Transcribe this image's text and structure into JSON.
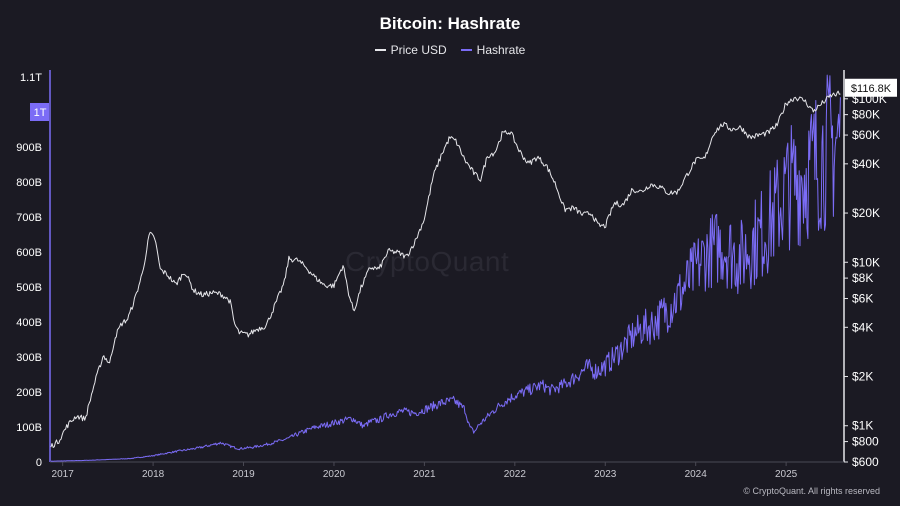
{
  "chart_data": {
    "type": "line",
    "title": "Bitcoin: Hashrate",
    "xlabel": "",
    "ylabel_left": "",
    "ylabel_right": "",
    "x_ticks": [
      "2017",
      "2018",
      "2019",
      "2020",
      "2021",
      "2022",
      "2023",
      "2024",
      "2025"
    ],
    "x_range": [
      2016.86,
      2025.64
    ],
    "y_left": {
      "scale": "linear",
      "range": [
        0,
        1120000000000.0
      ],
      "ticks": [
        {
          "value": 0,
          "label": "0"
        },
        {
          "value": 100000000000.0,
          "label": "100B"
        },
        {
          "value": 200000000000.0,
          "label": "200B"
        },
        {
          "value": 300000000000.0,
          "label": "300B"
        },
        {
          "value": 400000000000.0,
          "label": "400B"
        },
        {
          "value": 500000000000.0,
          "label": "500B"
        },
        {
          "value": 600000000000.0,
          "label": "600B"
        },
        {
          "value": 700000000000.0,
          "label": "700B"
        },
        {
          "value": 800000000000.0,
          "label": "800B"
        },
        {
          "value": 900000000000.0,
          "label": "900B"
        },
        {
          "value": 1100000000000.0,
          "label": "1.1T"
        }
      ],
      "highlight": {
        "value": 1000000000000.0,
        "label": "1T"
      }
    },
    "y_right": {
      "scale": "log",
      "range": [
        600,
        150000
      ],
      "ticks": [
        {
          "value": 600,
          "label": "$600"
        },
        {
          "value": 800,
          "label": "$800"
        },
        {
          "value": 1000,
          "label": "$1K"
        },
        {
          "value": 2000,
          "label": "$2K"
        },
        {
          "value": 4000,
          "label": "$4K"
        },
        {
          "value": 6000,
          "label": "$6K"
        },
        {
          "value": 8000,
          "label": "$8K"
        },
        {
          "value": 10000,
          "label": "$10K"
        },
        {
          "value": 20000,
          "label": "$20K"
        },
        {
          "value": 40000,
          "label": "$40K"
        },
        {
          "value": 60000,
          "label": "$60K"
        },
        {
          "value": 80000,
          "label": "$80K"
        },
        {
          "value": 100000,
          "label": "$100K"
        }
      ],
      "highlight": {
        "value": 116800,
        "label": "$116.8K"
      }
    },
    "series": [
      {
        "name": "Price USD",
        "axis": "right",
        "color": "#e6e6ea",
        "x": [
          2016.87,
          2016.95,
          2017.05,
          2017.15,
          2017.25,
          2017.35,
          2017.45,
          2017.52,
          2017.58,
          2017.65,
          2017.72,
          2017.8,
          2017.88,
          2017.93,
          2017.96,
          2018.02,
          2018.08,
          2018.15,
          2018.25,
          2018.35,
          2018.45,
          2018.55,
          2018.65,
          2018.75,
          2018.85,
          2018.9,
          2018.95,
          2019.05,
          2019.15,
          2019.25,
          2019.35,
          2019.45,
          2019.5,
          2019.6,
          2019.7,
          2019.8,
          2019.9,
          2020.0,
          2020.1,
          2020.17,
          2020.22,
          2020.3,
          2020.4,
          2020.5,
          2020.6,
          2020.7,
          2020.8,
          2020.9,
          2021.0,
          2021.1,
          2021.2,
          2021.28,
          2021.35,
          2021.45,
          2021.55,
          2021.62,
          2021.7,
          2021.78,
          2021.86,
          2021.95,
          2022.05,
          2022.15,
          2022.25,
          2022.35,
          2022.45,
          2022.55,
          2022.65,
          2022.75,
          2022.85,
          2022.92,
          2023.0,
          2023.1,
          2023.2,
          2023.3,
          2023.4,
          2023.5,
          2023.6,
          2023.7,
          2023.8,
          2023.9,
          2024.0,
          2024.1,
          2024.2,
          2024.3,
          2024.4,
          2024.5,
          2024.6,
          2024.7,
          2024.8,
          2024.9,
          2025.0,
          2025.1,
          2025.2,
          2025.3,
          2025.4,
          2025.5,
          2025.6
        ],
        "values": [
          750,
          800,
          1000,
          1150,
          1100,
          1800,
          2700,
          2400,
          3500,
          4200,
          4500,
          6000,
          8500,
          12000,
          15000,
          14000,
          9000,
          8500,
          7300,
          8800,
          6700,
          6300,
          6500,
          6400,
          5800,
          4200,
          3700,
          3600,
          3900,
          4100,
          5500,
          7500,
          10500,
          10300,
          9200,
          8000,
          7200,
          7200,
          9600,
          6200,
          5000,
          7000,
          9300,
          9100,
          11700,
          11500,
          10800,
          13500,
          18500,
          34000,
          47000,
          58000,
          55000,
          42000,
          35000,
          32000,
          45000,
          47000,
          61000,
          63000,
          48000,
          40000,
          44000,
          39000,
          30000,
          21000,
          21500,
          19500,
          20000,
          16800,
          16600,
          23000,
          22500,
          28000,
          27000,
          30000,
          29000,
          26500,
          27000,
          34000,
          42000,
          43000,
          62000,
          70000,
          65000,
          67000,
          58000,
          60000,
          62000,
          69000,
          94000,
          102000,
          98000,
          84000,
          94000,
          105000,
          108000
        ]
      },
      {
        "name": "Hashrate",
        "axis": "left",
        "color": "#7b6cf6",
        "x": [
          2016.87,
          2017.0,
          2017.25,
          2017.5,
          2017.75,
          2018.0,
          2018.25,
          2018.5,
          2018.75,
          2018.85,
          2018.95,
          2019.1,
          2019.25,
          2019.4,
          2019.5,
          2019.6,
          2019.7,
          2019.8,
          2019.9,
          2020.0,
          2020.1,
          2020.2,
          2020.33,
          2020.4,
          2020.5,
          2020.6,
          2020.75,
          2020.9,
          2021.0,
          2021.1,
          2021.2,
          2021.33,
          2021.45,
          2021.5,
          2021.55,
          2021.6,
          2021.7,
          2021.8,
          2021.9,
          2022.0,
          2022.1,
          2022.2,
          2022.3,
          2022.4,
          2022.5,
          2022.6,
          2022.7,
          2022.8,
          2022.9,
          2023.0,
          2023.1,
          2023.2,
          2023.3,
          2023.4,
          2023.5,
          2023.6,
          2023.7,
          2023.8,
          2023.9,
          2024.0,
          2024.1,
          2024.2,
          2024.3,
          2024.4,
          2024.5,
          2024.6,
          2024.7,
          2024.8,
          2024.9,
          2025.0,
          2025.1,
          2025.2,
          2025.3,
          2025.4,
          2025.5,
          2025.6
        ],
        "values": [
          2400000000.0,
          3000000000.0,
          4500000000.0,
          7000000000.0,
          10000000000.0,
          18000000000.0,
          30000000000.0,
          40000000000.0,
          55000000000.0,
          45000000000.0,
          38000000000.0,
          42000000000.0,
          50000000000.0,
          60000000000.0,
          68000000000.0,
          80000000000.0,
          90000000000.0,
          100000000000.0,
          105000000000.0,
          112000000000.0,
          118000000000.0,
          125000000000.0,
          102000000000.0,
          115000000000.0,
          120000000000.0,
          135000000000.0,
          145000000000.0,
          140000000000.0,
          150000000000.0,
          160000000000.0,
          170000000000.0,
          175000000000.0,
          150000000000.0,
          100000000000.0,
          85000000000.0,
          105000000000.0,
          130000000000.0,
          155000000000.0,
          175000000000.0,
          190000000000.0,
          200000000000.0,
          210000000000.0,
          220000000000.0,
          205000000000.0,
          215000000000.0,
          230000000000.0,
          250000000000.0,
          270000000000.0,
          260000000000.0,
          275000000000.0,
          300000000000.0,
          330000000000.0,
          360000000000.0,
          380000000000.0,
          390000000000.0,
          410000000000.0,
          440000000000.0,
          470000000000.0,
          510000000000.0,
          550000000000.0,
          590000000000.0,
          610000000000.0,
          620000000000.0,
          600000000000.0,
          580000000000.0,
          620000000000.0,
          640000000000.0,
          680000000000.0,
          720000000000.0,
          780000000000.0,
          800000000000.0,
          820000000000.0,
          850000000000.0,
          880000000000.0,
          900000000000.0,
          930000000000.0
        ]
      }
    ],
    "grid": false,
    "legend_placement": "top-center",
    "watermark": "CryptoQuant",
    "copyright": "© CryptoQuant. All rights reserved"
  }
}
